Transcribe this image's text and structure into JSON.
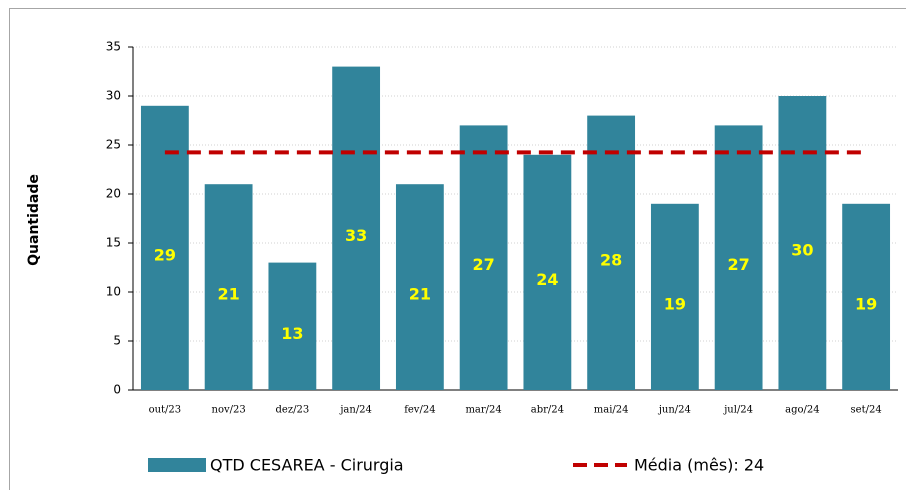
{
  "chart_data": {
    "type": "bar",
    "y_label": "Quantidade",
    "categories": [
      "out/23",
      "nov/23",
      "dez/23",
      "jan/24",
      "fev/24",
      "mar/24",
      "abr/24",
      "mai/24",
      "jun/24",
      "jul/24",
      "ago/24",
      "set/24"
    ],
    "series": [
      {
        "name": "QTD CESAREA - Cirurgia",
        "color": "#31849b",
        "values": [
          29,
          21,
          13,
          33,
          21,
          27,
          24,
          28,
          19,
          27,
          30,
          19
        ]
      }
    ],
    "mean": {
      "name": "Média (mês): 24",
      "color": "#c00000",
      "value": 24.25
    },
    "ylim": [
      0,
      35
    ],
    "yticks": [
      0,
      5,
      10,
      15,
      20,
      25,
      30,
      35
    ],
    "grid": true,
    "label_color": "#ffff00"
  }
}
